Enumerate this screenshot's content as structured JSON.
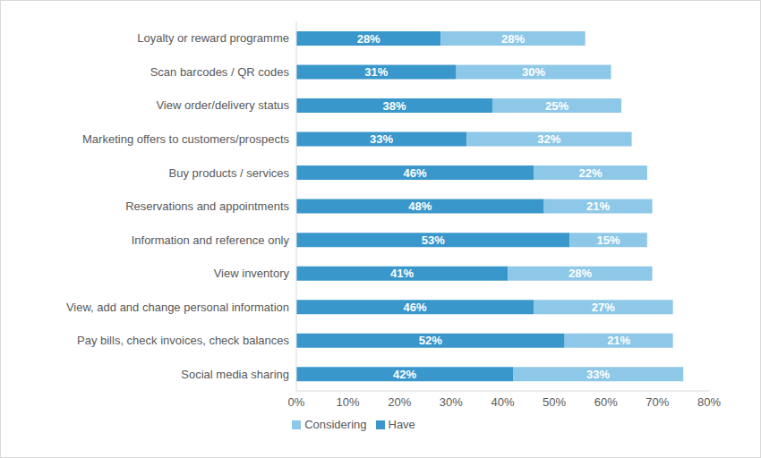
{
  "chart_data": {
    "type": "bar",
    "orientation": "horizontal",
    "stacked": true,
    "data_labels": true,
    "grid": false,
    "legend": "bottom",
    "categories": [
      "Loyalty or reward programme",
      "Scan barcodes / QR codes",
      "View order/delivery status",
      "Marketing offers to customers/prospects",
      "Buy products / services",
      "Reservations and appointments",
      "Information and reference only",
      "View inventory",
      "View, add and change personal information",
      "Pay bills, check invoices, check balances",
      "Social media sharing"
    ],
    "series": [
      {
        "name": "Have",
        "color": "#3a97cb",
        "values": [
          28,
          31,
          38,
          33,
          46,
          48,
          53,
          41,
          46,
          52,
          42
        ],
        "value_labels": [
          "28%",
          "31%",
          "38%",
          "33%",
          "46%",
          "48%",
          "53%",
          "41%",
          "46%",
          "52%",
          "42%"
        ]
      },
      {
        "name": "Considering",
        "color": "#8ec8e8",
        "values": [
          28,
          30,
          25,
          32,
          22,
          21,
          15,
          28,
          27,
          21,
          33
        ],
        "value_labels": [
          "28%",
          "30%",
          "25%",
          "32%",
          "22%",
          "21%",
          "15%",
          "28%",
          "27%",
          "21%",
          "33%"
        ]
      }
    ],
    "xlim": [
      0,
      80
    ],
    "xticks": [
      {
        "value": 0,
        "label": "0%"
      },
      {
        "value": 10,
        "label": "10%"
      },
      {
        "value": 20,
        "label": "20%"
      },
      {
        "value": 30,
        "label": "30%"
      },
      {
        "value": 40,
        "label": "40%"
      },
      {
        "value": 50,
        "label": "50%"
      },
      {
        "value": 60,
        "label": "60%"
      },
      {
        "value": 70,
        "label": "70%"
      },
      {
        "value": 80,
        "label": "80%"
      }
    ]
  }
}
